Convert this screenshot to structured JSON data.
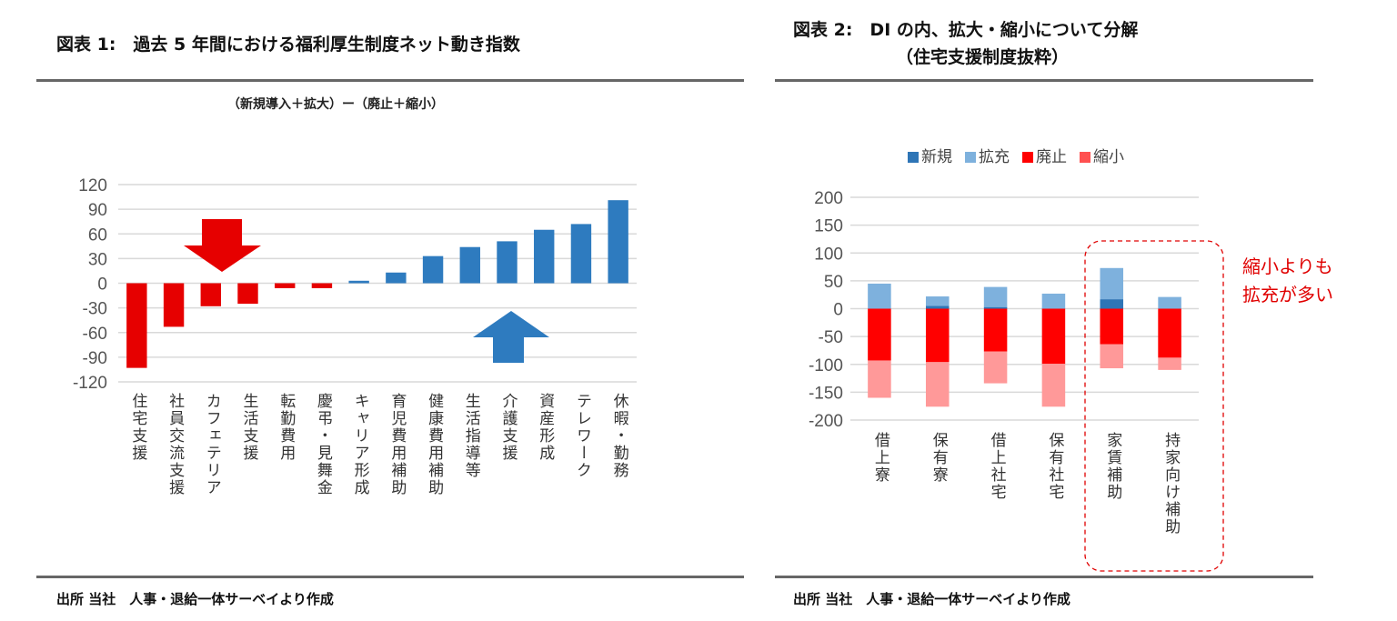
{
  "left": {
    "title": "図表 1:　過去 5 年間における福利厚生制度ネット動き指数",
    "subtitle": "（新規導入＋拡大）ー（廃止＋縮小）",
    "footer": "出所 当社　人事・退給一体サーベイより作成"
  },
  "right": {
    "title": "図表 2:　DI の内、拡大・縮小について分解",
    "title2": "（住宅支援制度抜粋）",
    "footer": "出所 当社　人事・退給一体サーベイより作成",
    "annotation": [
      "縮小よりも",
      "拡充が多い"
    ]
  },
  "chart_data": [
    {
      "type": "bar",
      "title": "（新規導入＋拡大）ー（廃止＋縮小）",
      "categories": [
        "住宅支援",
        "社員交流支援",
        "カフェテリア",
        "生活支援",
        "転勤費用",
        "慶弔・見舞金",
        "キャリア形成",
        "育児費用補助",
        "健康費用補助",
        "生活指導等",
        "介護支援",
        "資産形成",
        "テレワーク",
        "休暇・勤務"
      ],
      "values": [
        -103,
        -53,
        -28,
        -25,
        -6,
        -6,
        3,
        13,
        33,
        44,
        51,
        65,
        72,
        101
      ],
      "ylim": [
        -120,
        120
      ],
      "yticks": [
        120,
        90,
        60,
        30,
        0,
        -30,
        -60,
        -90,
        -120
      ],
      "grid": true,
      "colors": {
        "negative": "#E60000",
        "positive": "#2E7BBF"
      },
      "annotations": [
        "down-arrow (red)",
        "up-arrow (blue)"
      ]
    },
    {
      "type": "stacked-bar",
      "categories": [
        "借上寮",
        "保有寮",
        "借上社宅",
        "保有社宅",
        "家賃補助",
        "持家向け補助"
      ],
      "series": [
        {
          "name": "新規",
          "color": "#2E75B6",
          "values": [
            0,
            5,
            3,
            0,
            17,
            0
          ]
        },
        {
          "name": "拡充",
          "color": "#7EB1DD",
          "values": [
            45,
            17,
            36,
            27,
            56,
            21
          ]
        },
        {
          "name": "廃止",
          "color": "#FF0000",
          "values": [
            -93,
            -96,
            -77,
            -99,
            -64,
            -88
          ]
        },
        {
          "name": "縮小",
          "color": "#FF9999",
          "values": [
            -67,
            -80,
            -57,
            -77,
            -43,
            -22
          ]
        }
      ],
      "ylim": [
        -200,
        200
      ],
      "yticks": [
        200,
        150,
        100,
        50,
        0,
        -50,
        -100,
        -150,
        -200
      ],
      "grid": true,
      "legend": "top",
      "highlight": [
        "家賃補助",
        "持家向け補助"
      ]
    }
  ]
}
